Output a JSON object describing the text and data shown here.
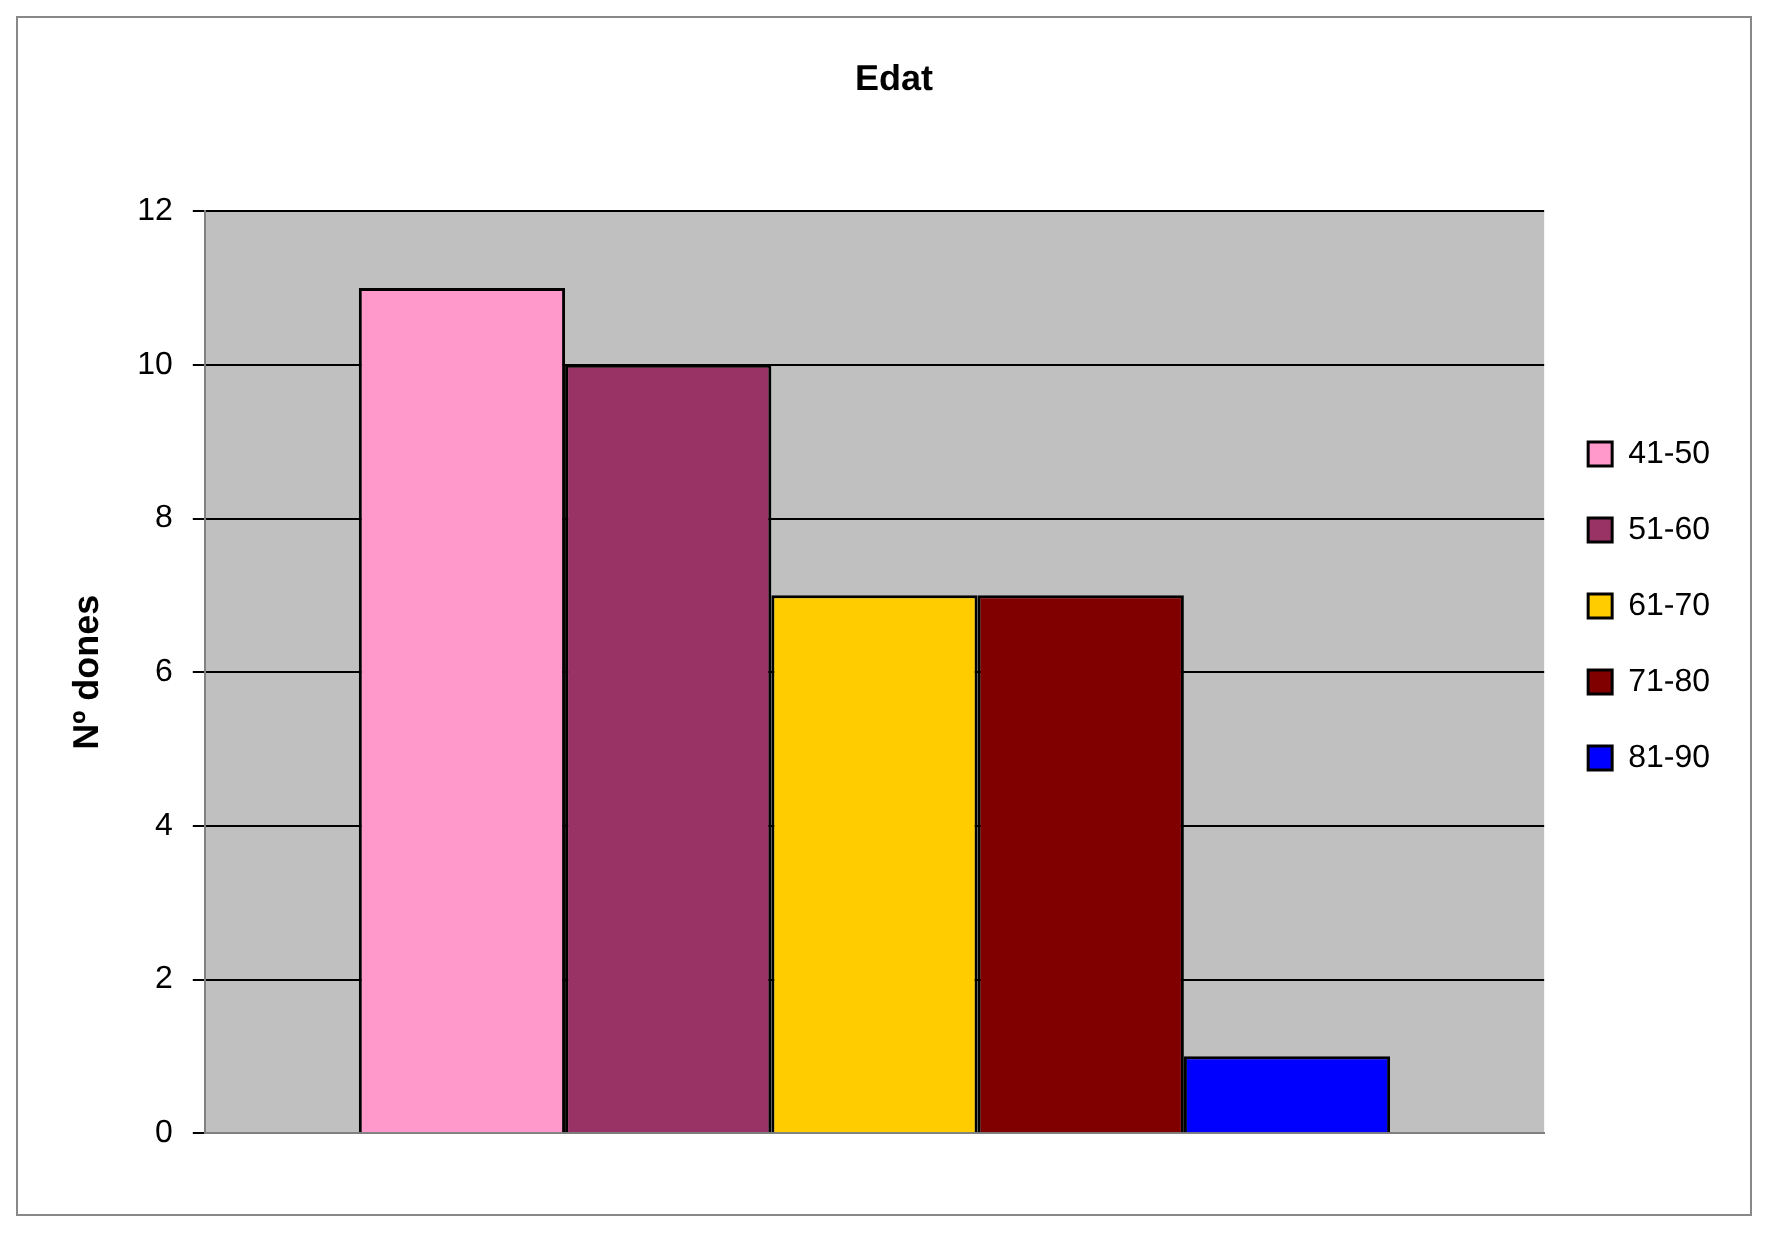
{
  "chart_data": {
    "type": "bar",
    "title": "Edat",
    "ylabel": "Nº dones",
    "categories": [
      null
    ],
    "series": [
      {
        "name": "41-50",
        "color": "#ff99cc",
        "values": [
          11
        ]
      },
      {
        "name": "51-60",
        "color": "#993366",
        "values": [
          10
        ]
      },
      {
        "name": "61-70",
        "color": "#ffcc00",
        "values": [
          7
        ]
      },
      {
        "name": "71-80",
        "color": "#800000",
        "values": [
          7
        ]
      },
      {
        "name": "81-90",
        "color": "#0000ff",
        "values": [
          1
        ]
      }
    ],
    "ylim": [
      0,
      12
    ],
    "yticks": [
      0,
      2,
      4,
      6,
      8,
      10,
      12
    ],
    "grid": "y",
    "legend": "right"
  }
}
